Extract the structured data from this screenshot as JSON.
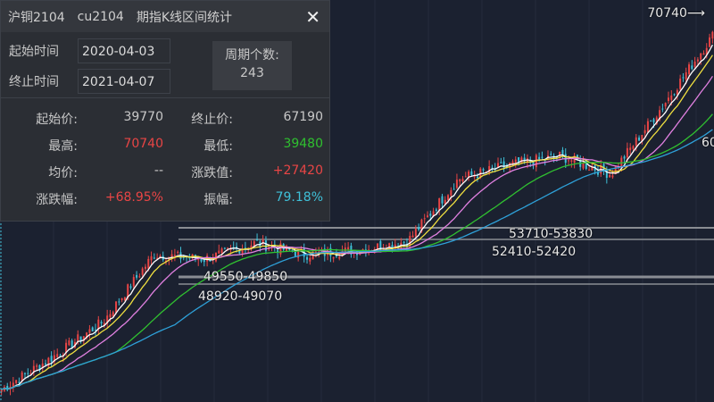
{
  "header": {
    "name": "沪铜2104",
    "code": "cu2104",
    "title": "期指K线区间统计",
    "close_icon": "close-icon"
  },
  "range": {
    "start_label": "起始时间",
    "start_value": "2020-04-03",
    "end_label": "终止时间",
    "end_value": "2021-04-07",
    "count_label": "周期个数:",
    "count_value": "243"
  },
  "stats": [
    {
      "label": "起始价:",
      "value": "39770",
      "color": "#c8c8c8"
    },
    {
      "label": "终止价:",
      "value": "67190",
      "color": "#c8c8c8"
    },
    {
      "label": "最高:",
      "value": "70740",
      "color": "#e84545"
    },
    {
      "label": "最低:",
      "value": "39480",
      "color": "#2fc02f"
    },
    {
      "label": "均价:",
      "value": "--",
      "color": "#c8c8c8"
    },
    {
      "label": "涨跌值:",
      "value": "+27420",
      "color": "#e84545"
    },
    {
      "label": "涨跌幅:",
      "value": "+68.95%",
      "color": "#e84545"
    },
    {
      "label": "振幅:",
      "value": "79.18%",
      "color": "#3fc0d8"
    }
  ],
  "chart": {
    "high_marker": "70740⟶",
    "partial_label": "60",
    "levels": [
      "53710-53830",
      "52410-52420",
      "49550-49850",
      "48920-49070"
    ],
    "price_path": [
      39770,
      42420,
      45360,
      50880,
      50510,
      51840,
      50880,
      51250,
      51980,
      57130,
      58240,
      59010,
      57500,
      63020,
      68900
    ],
    "up_color": "#e84545",
    "down_color": "#3fc0d8",
    "ma_colors": [
      "#ffffff",
      "#f0e040",
      "#e080e0",
      "#30c030",
      "#2ea0d8"
    ]
  }
}
